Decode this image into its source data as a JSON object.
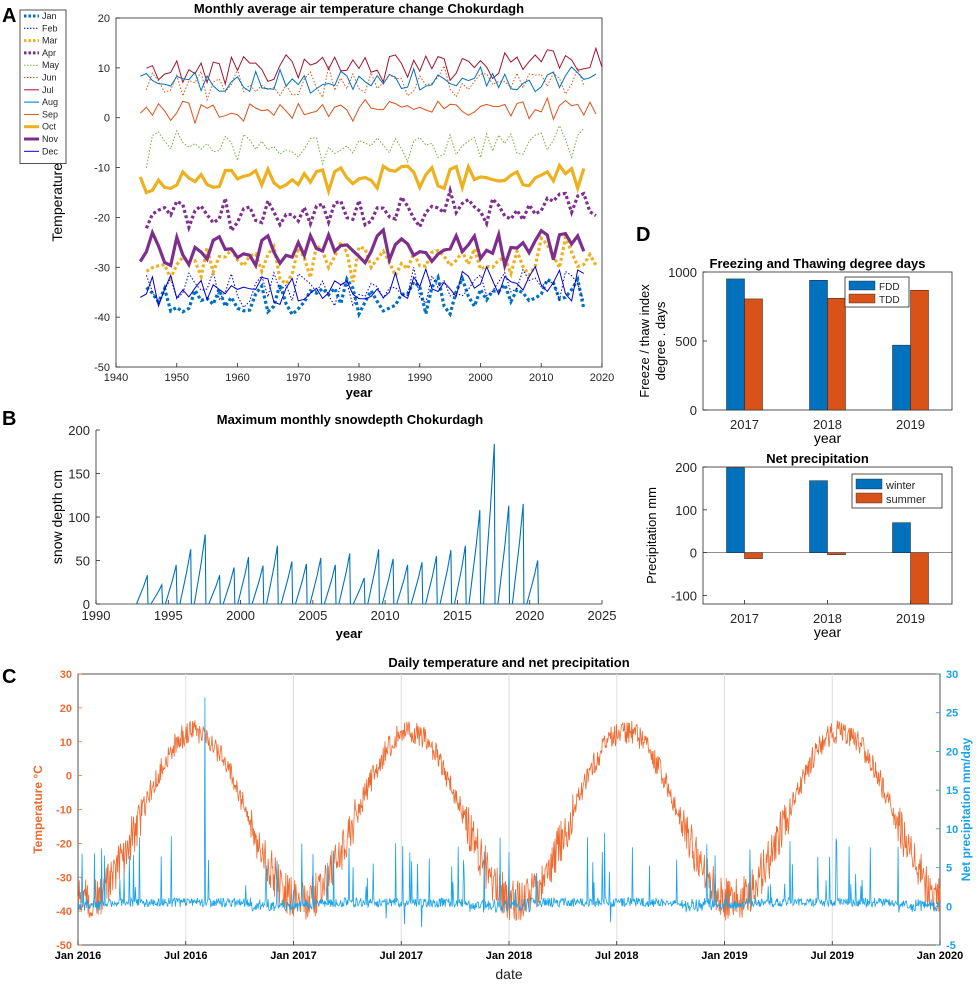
{
  "colors": {
    "axis": "#262626",
    "grid": "#dddddd",
    "jan_mar_oct": "#EDB120",
    "blue": "#0072BD",
    "purple": "#7E2F8E",
    "green": "#77AC30",
    "red": "#D95319",
    "dark_red": "#A2142F",
    "light_blue": "#4DBEEE",
    "mid_blue": "#1f77b4",
    "navy": "#0000CD",
    "fdd": "#0072BD",
    "tdd": "#D95319",
    "temp_line": "#EE6A30",
    "precip_line": "#1AA3E8"
  },
  "panel_labels": {
    "a": "A",
    "b": "B",
    "c": "C",
    "d": "D"
  },
  "chart_data": [
    {
      "id": "A",
      "type": "line",
      "title": "Monthly average air temperature change Chokurdagh",
      "xlabel": "year",
      "ylabel": "Temperature  °C",
      "xlim": [
        1940,
        2020
      ],
      "ylim": [
        -50,
        20
      ],
      "xticks": [
        "1940",
        "1950",
        "1960",
        "1970",
        "1980",
        "1990",
        "2000",
        "2010",
        "2020"
      ],
      "yticks": [
        "20",
        "10",
        "0",
        "-10",
        "-20",
        "-30",
        "-40",
        "-50"
      ],
      "legend_position": "top-left",
      "series": [
        {
          "name": "Jan",
          "color": "#0072BD",
          "style": "dotted-thick",
          "mean": -36,
          "amp": 3,
          "trend": 0.03,
          "range": [
            1945,
            2017
          ]
        },
        {
          "name": "Feb",
          "color": "#0000CD",
          "style": "dotted",
          "mean": -34,
          "amp": 3,
          "trend": 0.02,
          "range": [
            1945,
            2017
          ]
        },
        {
          "name": "Mar",
          "color": "#EDB120",
          "style": "dotted-thick",
          "mean": -29,
          "amp": 3,
          "trend": 0.03,
          "range": [
            1945,
            2019
          ]
        },
        {
          "name": "Apr",
          "color": "#7E2F8E",
          "style": "dotted-thick",
          "mean": -19,
          "amp": 3,
          "trend": 0.04,
          "range": [
            1945,
            2019
          ]
        },
        {
          "name": "May",
          "color": "#77AC30",
          "style": "dotted",
          "mean": -6,
          "amp": 3,
          "trend": 0.01,
          "range": [
            1945,
            2017
          ]
        },
        {
          "name": "Jun",
          "color": "#D95319",
          "style": "dotted",
          "mean": 7,
          "amp": 2.5,
          "trend": 0.01,
          "range": [
            1945,
            2017
          ]
        },
        {
          "name": "Jul",
          "color": "#A2142F",
          "style": "solid",
          "mean": 10.5,
          "amp": 2.5,
          "trend": 0.02,
          "range": [
            1945,
            2020
          ]
        },
        {
          "name": "Aug",
          "color": "#0072BD",
          "style": "solid",
          "mean": 7.5,
          "amp": 2,
          "trend": 0.01,
          "range": [
            1944,
            2019
          ]
        },
        {
          "name": "Sep",
          "color": "#D95319",
          "style": "solid",
          "mean": 1.5,
          "amp": 1.8,
          "trend": 0.01,
          "range": [
            1944,
            2019
          ]
        },
        {
          "name": "Oct",
          "color": "#EDB120",
          "style": "solid-thick",
          "mean": -12,
          "amp": 2,
          "trend": 0.01,
          "range": [
            1944,
            2017
          ]
        },
        {
          "name": "Nov",
          "color": "#7E2F8E",
          "style": "solid-thick",
          "mean": -26,
          "amp": 3,
          "trend": 0.02,
          "range": [
            1944,
            2017
          ]
        },
        {
          "name": "Dec",
          "color": "#0000CD",
          "style": "solid",
          "mean": -34,
          "amp": 3,
          "trend": 0.02,
          "range": [
            1944,
            2017
          ]
        }
      ]
    },
    {
      "id": "B",
      "type": "line",
      "title": "Maximum monthly snowdepth Chokurdagh",
      "xlabel": "year",
      "ylabel": "snow depth  cm",
      "xlim": [
        1990,
        2025
      ],
      "ylim": [
        0,
        200
      ],
      "xticks": [
        "1990",
        "1995",
        "2000",
        "2005",
        "2010",
        "2015",
        "2020",
        "2025"
      ],
      "yticks": [
        "200",
        "150",
        "100",
        "50",
        "0"
      ],
      "color": "#0072BD",
      "winter_peaks": [
        {
          "year": 1993,
          "peak": 33
        },
        {
          "year": 1994,
          "peak": 22
        },
        {
          "year": 1995,
          "peak": 45
        },
        {
          "year": 1996,
          "peak": 63
        },
        {
          "year": 1997,
          "peak": 80
        },
        {
          "year": 1998,
          "peak": 33
        },
        {
          "year": 1999,
          "peak": 42
        },
        {
          "year": 2000,
          "peak": 54
        },
        {
          "year": 2001,
          "peak": 44
        },
        {
          "year": 2002,
          "peak": 67
        },
        {
          "year": 2003,
          "peak": 49
        },
        {
          "year": 2004,
          "peak": 46
        },
        {
          "year": 2005,
          "peak": 53
        },
        {
          "year": 2006,
          "peak": 45
        },
        {
          "year": 2007,
          "peak": 58
        },
        {
          "year": 2008,
          "peak": 30
        },
        {
          "year": 2009,
          "peak": 63
        },
        {
          "year": 2010,
          "peak": 52
        },
        {
          "year": 2011,
          "peak": 45
        },
        {
          "year": 2012,
          "peak": 48
        },
        {
          "year": 2013,
          "peak": 55
        },
        {
          "year": 2014,
          "peak": 62
        },
        {
          "year": 2015,
          "peak": 67
        },
        {
          "year": 2016,
          "peak": 108
        },
        {
          "year": 2017,
          "peak": 184
        },
        {
          "year": 2018,
          "peak": 113
        },
        {
          "year": 2019,
          "peak": 115
        },
        {
          "year": 2020,
          "peak": 50
        }
      ]
    },
    {
      "id": "C",
      "type": "line",
      "title": "Daily temperature and net precipitation",
      "xlabel": "date",
      "ylabel_left": "Temperature °C",
      "ylabel_right": "Net precipitation mm/day",
      "xticks": [
        "Jan 2016",
        "Jul 2016",
        "Jan 2017",
        "Jul 2017",
        "Jan 2018",
        "Jul 2018",
        "Jan 2019",
        "Jul 2019",
        "Jan 2020"
      ],
      "ylim_left": [
        -50,
        30
      ],
      "ylim_right": [
        -5,
        30
      ],
      "yticks_left": [
        "30",
        "20",
        "10",
        "0",
        "-10",
        "-20",
        "-30",
        "-40",
        "-50"
      ],
      "yticks_right": [
        "30",
        "25",
        "20",
        "15",
        "10",
        "5",
        "0",
        "-5"
      ],
      "temperature": {
        "annual_mean": -12,
        "amplitude": 25,
        "peak_month": "Jul",
        "noise": 4
      },
      "precipitation": {
        "baseline": 0.5,
        "max_spike": 27,
        "max_spike_date": "Aug 2016"
      }
    },
    {
      "id": "D1",
      "type": "bar",
      "title": "Freezing and Thawing degree days",
      "xlabel": "year",
      "ylabel": [
        "Freeze / thaw index",
        "degree . days"
      ],
      "categories": [
        "2017",
        "2018",
        "2019"
      ],
      "ylim": [
        0,
        1000
      ],
      "yticks": [
        "1000",
        "500",
        "0"
      ],
      "legend_position": "top-right",
      "series": [
        {
          "name": "FDD",
          "color": "#0072BD",
          "values": [
            950,
            940,
            470
          ]
        },
        {
          "name": "TDD",
          "color": "#D95319",
          "values": [
            805,
            810,
            868
          ]
        }
      ]
    },
    {
      "id": "D2",
      "type": "bar",
      "title": "Net precipitation",
      "xlabel": "year",
      "ylabel": "Precipitation mm",
      "categories": [
        "2017",
        "2018",
        "2019"
      ],
      "ylim": [
        -120,
        200
      ],
      "yticks": [
        "200",
        "100",
        "0",
        "-100"
      ],
      "legend_position": "top-right",
      "series": [
        {
          "name": "winter",
          "color": "#0072BD",
          "values": [
            198,
            168,
            70
          ]
        },
        {
          "name": "summer",
          "color": "#D95319",
          "values": [
            -14,
            -5,
            -120
          ]
        }
      ]
    }
  ]
}
